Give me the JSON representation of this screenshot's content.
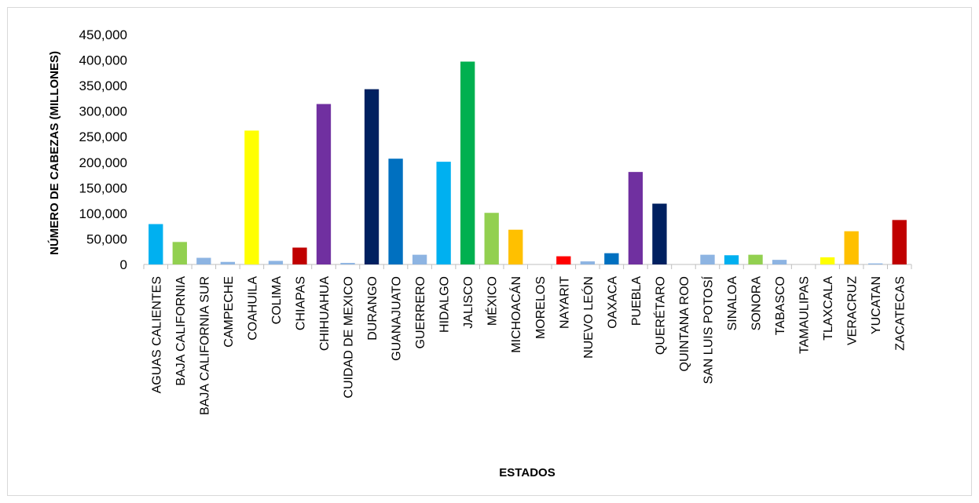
{
  "chart_data": {
    "type": "bar",
    "title": "",
    "xlabel": "ESTADOS",
    "ylabel": "NÚMERO DE CABEZAS (MILLONES)",
    "ylim": [
      0,
      450000
    ],
    "yticks": [
      0,
      50000,
      100000,
      150000,
      200000,
      250000,
      300000,
      350000,
      400000,
      450000
    ],
    "ytick_labels": [
      "0",
      "50,000",
      "100,000",
      "150,000",
      "200,000",
      "250,000",
      "300,000",
      "350,000",
      "400,000",
      "450,000"
    ],
    "grid": false,
    "legend": "none",
    "categories": [
      "AGUAS CALIENTES",
      "BAJA CALIFORNIA",
      "BAJA CALIFORNIA SUR",
      "CAMPECHE",
      "COAHUILA",
      "COLIMA",
      "CHIAPAS",
      "CHIHUAHUA",
      "CUIDAD DE MEXICO",
      "DURANGO",
      "GUANAJUATO",
      "GUERRERO",
      "HIDALGO",
      "JALISCO",
      "MÉXICO",
      "MICHOACÁN",
      "MORELOS",
      "NAYARIT",
      "NUEVO LEÓN",
      "OAXACA",
      "PUEBLA",
      "QUERÉTARO",
      "QUINTANA ROO",
      "SAN LUIS POTOSÍ",
      "SINALOA",
      "SONORA",
      "TABASCO",
      "TAMAULIPAS",
      "TLAXCALA",
      "VERACRUZ",
      "YUCATAN",
      "ZACATECAS"
    ],
    "values": [
      79000,
      44000,
      13000,
      5000,
      262000,
      7000,
      33000,
      314000,
      3000,
      343000,
      207000,
      19000,
      201000,
      397000,
      101000,
      68000,
      0,
      16000,
      6000,
      22000,
      181000,
      119000,
      0,
      19000,
      18000,
      19000,
      9000,
      0,
      14000,
      65000,
      2000,
      87000
    ],
    "colors": [
      "#00b0f0",
      "#92d050",
      "#8db4e2",
      "#8db4e2",
      "#ffff00",
      "#8db4e2",
      "#c00000",
      "#7030a0",
      "#8db4e2",
      "#002060",
      "#0070c0",
      "#8db4e2",
      "#00b0f0",
      "#00b050",
      "#92d050",
      "#ffc000",
      "#8db4e2",
      "#ff0000",
      "#8db4e2",
      "#0070c0",
      "#7030a0",
      "#002060",
      "#8db4e2",
      "#8db4e2",
      "#00b0f0",
      "#92d050",
      "#8db4e2",
      "#8db4e2",
      "#ffff00",
      "#ffc000",
      "#8db4e2",
      "#c00000"
    ]
  }
}
